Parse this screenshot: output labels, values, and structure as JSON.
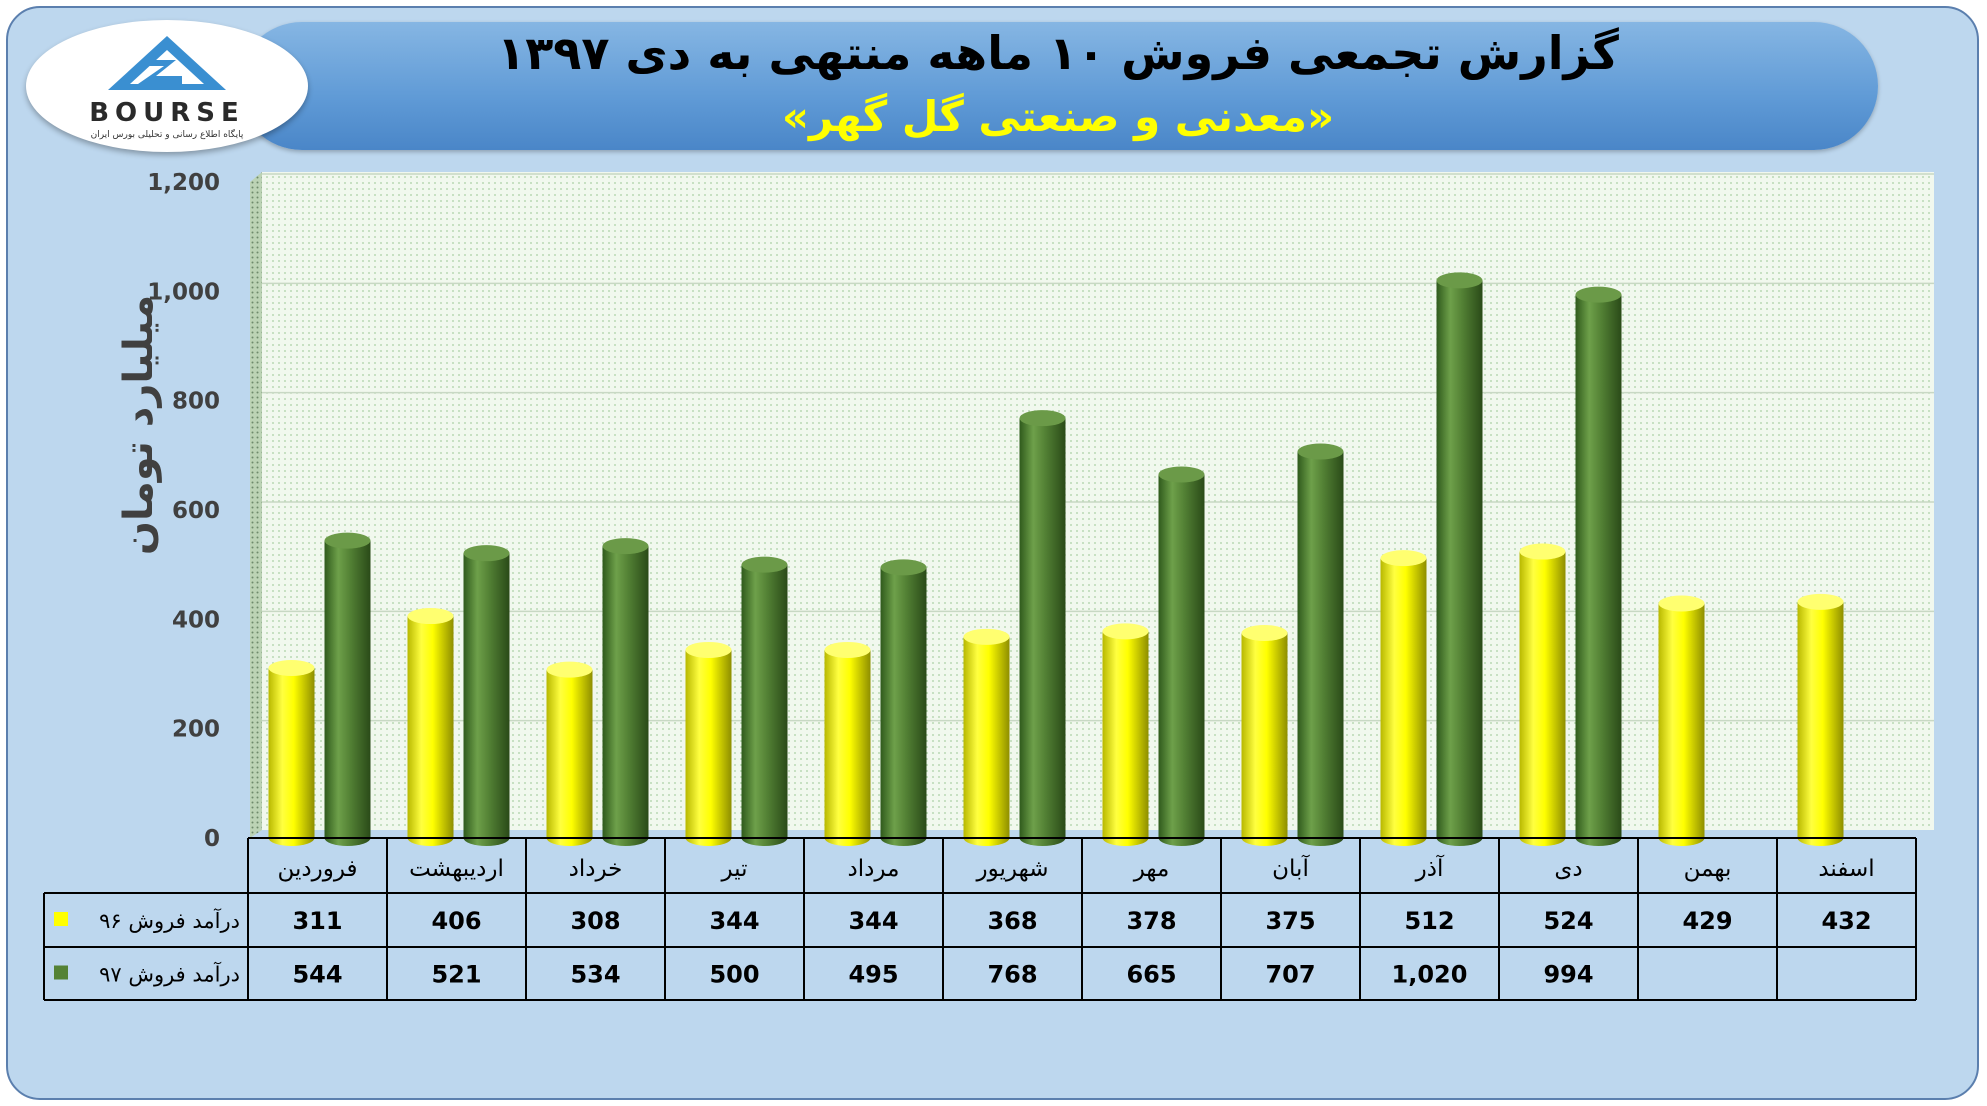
{
  "header": {
    "title": "گزارش تجمعی فروش ۱۰ ماهه منتهی به دی ۱۳۹۷",
    "subtitle": "«معدنی و صنعتی گل گهر»"
  },
  "logo": {
    "word": "BOURSE",
    "tagline": "پایگاه اطلاع رسانی و تحلیلی بورس ایران"
  },
  "chart_data": {
    "type": "bar",
    "ylabel": "میلیارد تومان",
    "ylim": [
      0,
      1200
    ],
    "yticks": [
      0,
      200,
      400,
      600,
      800,
      1000,
      1200
    ],
    "ytick_labels": [
      "0",
      "200",
      "400",
      "600",
      "800",
      "1,000",
      "1,200"
    ],
    "grid": true,
    "categories": [
      "فروردین",
      "اردیبهشت",
      "خرداد",
      "تیر",
      "مرداد",
      "شهریور",
      "مهر",
      "آبان",
      "آذر",
      "دی",
      "بهمن",
      "اسفند"
    ],
    "series": [
      {
        "name": "درآمد فروش ۹۶",
        "color": "#ffff00",
        "values": [
          311,
          406,
          308,
          344,
          344,
          368,
          378,
          375,
          512,
          524,
          429,
          432
        ],
        "labels": [
          "311",
          "406",
          "308",
          "344",
          "344",
          "368",
          "378",
          "375",
          "512",
          "524",
          "429",
          "432"
        ]
      },
      {
        "name": "درآمد فروش ۹۷",
        "color": "#548235",
        "values": [
          544,
          521,
          534,
          500,
          495,
          768,
          665,
          707,
          1020,
          994,
          null,
          null
        ],
        "labels": [
          "544",
          "521",
          "534",
          "500",
          "495",
          "768",
          "665",
          "707",
          "1,020",
          "994",
          "",
          ""
        ]
      }
    ]
  }
}
